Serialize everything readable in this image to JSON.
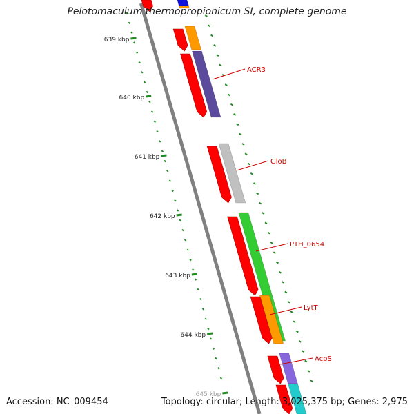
{
  "title": "Pelotomaculum thermopropionicum SI, complete genome",
  "accession_text": "Accession: NC_009454",
  "summary_text": "Topology: circular; Length: 3,025,375 bp; Genes: 2,975",
  "scale_labels": [
    "639 kbp",
    "640 kbp",
    "641 kbp",
    "642 kbp",
    "643 kbp",
    "644 kbp",
    "645 kbp"
  ],
  "gene_labels": [
    "ACR3",
    "GloB",
    "PTH_0654",
    "LytT",
    "AcpS"
  ],
  "colors": {
    "cds": "#ff0000",
    "label": "#cc0000",
    "backbone": "#808080",
    "scale": "#228b22",
    "orange": "#ff9900",
    "purple": "#5c4a9c",
    "gray": "#c0c0c0",
    "green": "#33cc33",
    "violet": "#8866dd",
    "cyan": "#22cccc",
    "blue": "#1111dd"
  }
}
